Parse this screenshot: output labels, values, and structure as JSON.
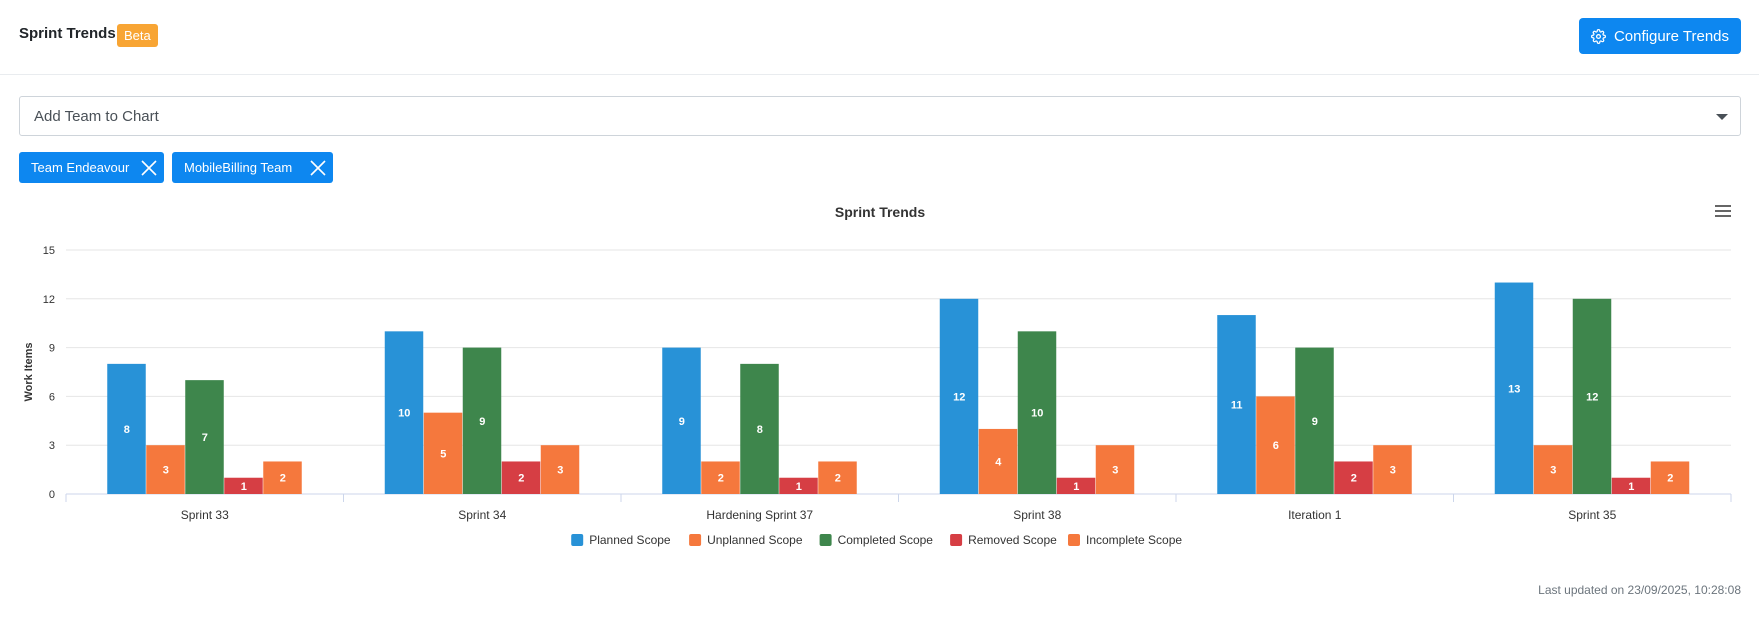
{
  "header": {
    "title": "Sprint Trends",
    "badge": "Beta",
    "configure_label": "Configure Trends"
  },
  "team_select": {
    "placeholder": "Add Team to Chart"
  },
  "chips": [
    {
      "label": "Team Endeavour"
    },
    {
      "label": "MobileBilling Team"
    }
  ],
  "chart_data": {
    "type": "bar",
    "title": "Sprint Trends",
    "ylabel": "Work Items",
    "xlabel": "",
    "ylim": [
      0,
      15
    ],
    "yticks": [
      0,
      3,
      6,
      9,
      12,
      15
    ],
    "grid": true,
    "legend_position": "bottom",
    "categories": [
      "Sprint 33",
      "Sprint 34",
      "Hardening Sprint 37",
      "Sprint 38",
      "Iteration 1",
      "Sprint 35"
    ],
    "series": [
      {
        "name": "Planned Scope",
        "color": "#2892d7",
        "values": [
          8,
          10,
          9,
          12,
          11,
          13
        ]
      },
      {
        "name": "Unplanned Scope",
        "color": "#f5783d",
        "values": [
          3,
          5,
          2,
          4,
          6,
          3
        ]
      },
      {
        "name": "Completed Scope",
        "color": "#3e864c",
        "values": [
          7,
          9,
          8,
          10,
          9,
          12
        ]
      },
      {
        "name": "Removed Scope",
        "color": "#d63e44",
        "values": [
          1,
          2,
          1,
          1,
          2,
          1
        ]
      },
      {
        "name": "Incomplete Scope",
        "color": "#f5783d",
        "values": [
          2,
          3,
          2,
          3,
          3,
          2
        ]
      }
    ]
  },
  "footer": {
    "last_updated": "Last updated on 23/09/2025, 10:28:08"
  }
}
